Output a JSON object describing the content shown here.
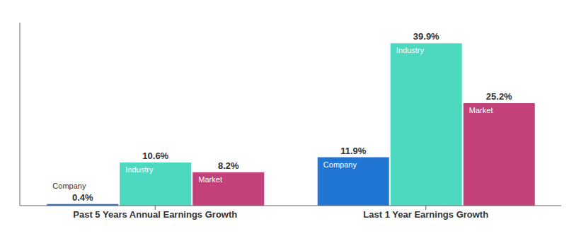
{
  "chart_data": {
    "type": "bar",
    "categories": [
      "Past 5 Years Annual Earnings Growth",
      "Last 1 Year Earnings Growth"
    ],
    "series": [
      {
        "name": "Company",
        "color": "#2176d4",
        "values": [
          0.4,
          11.9
        ],
        "value_labels": [
          "0.4%",
          "11.9%"
        ]
      },
      {
        "name": "Industry",
        "color": "#4dd9c0",
        "values": [
          10.6,
          39.9
        ],
        "value_labels": [
          "10.6%",
          "39.9%"
        ]
      },
      {
        "name": "Market",
        "color": "#c2417a",
        "values": [
          8.2,
          25.2
        ],
        "value_labels": [
          "8.2%",
          "25.2%"
        ]
      }
    ],
    "ylim": [
      0,
      45
    ],
    "data_labels": true,
    "tick_labels": "x",
    "grid": false
  }
}
